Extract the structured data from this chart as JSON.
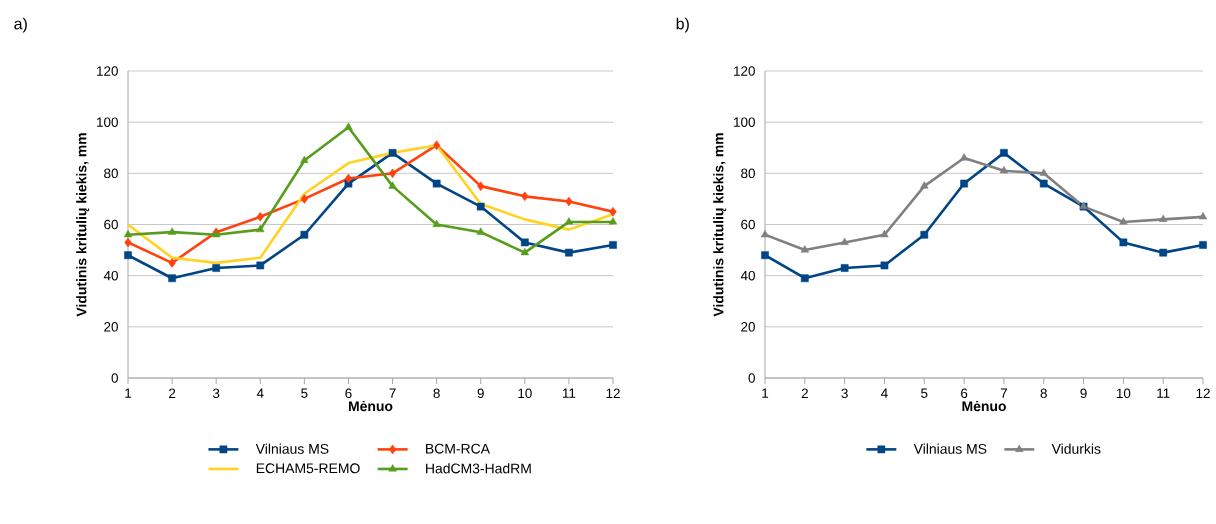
{
  "chart_data": [
    {
      "type": "line",
      "title": "a)",
      "xlabel": "Mėnuo",
      "ylabel": "Vidutinis kritulių kiekis, mm",
      "categories": [
        "1",
        "2",
        "3",
        "4",
        "5",
        "6",
        "7",
        "8",
        "9",
        "10",
        "11",
        "12"
      ],
      "ylim": [
        0,
        120
      ],
      "yticks": [
        0,
        20,
        40,
        60,
        80,
        100,
        120
      ],
      "grid": "y",
      "legend": "bottom",
      "series": [
        {
          "name": "Vilniaus MS",
          "color": "#004586",
          "marker": "square",
          "values": [
            48,
            39,
            43,
            44,
            56,
            76,
            88,
            76,
            67,
            53,
            49,
            52
          ]
        },
        {
          "name": "BCM-RCA",
          "color": "#ff420e",
          "marker": "diamond",
          "values": [
            53,
            45,
            57,
            63,
            70,
            78,
            80,
            91,
            75,
            71,
            69,
            65
          ]
        },
        {
          "name": "ECHAM5-REMO",
          "color": "#ffd320",
          "marker": "none",
          "values": [
            60,
            47,
            45,
            47,
            72,
            84,
            88,
            91,
            68,
            62,
            58,
            64
          ]
        },
        {
          "name": "HadCM3-HadRM",
          "color": "#579d1c",
          "marker": "triangle",
          "values": [
            56,
            57,
            56,
            58,
            85,
            98,
            75,
            60,
            57,
            49,
            61,
            61
          ]
        }
      ]
    },
    {
      "type": "line",
      "title": "b)",
      "xlabel": "Mėnuo",
      "ylabel": "Vidutinis kritulių kiekis, mm",
      "categories": [
        "1",
        "2",
        "3",
        "4",
        "5",
        "6",
        "7",
        "8",
        "9",
        "10",
        "11",
        "12"
      ],
      "ylim": [
        0,
        120
      ],
      "yticks": [
        0,
        20,
        40,
        60,
        80,
        100,
        120
      ],
      "grid": "y",
      "legend": "bottom",
      "series": [
        {
          "name": "Vilniaus MS",
          "color": "#004586",
          "marker": "square",
          "values": [
            48,
            39,
            43,
            44,
            56,
            76,
            88,
            76,
            67,
            53,
            49,
            52
          ]
        },
        {
          "name": "Vidurkis",
          "color": "#808080",
          "marker": "triangle",
          "values": [
            56,
            50,
            53,
            56,
            75,
            86,
            81,
            80,
            67,
            61,
            62,
            63
          ]
        }
      ]
    }
  ]
}
